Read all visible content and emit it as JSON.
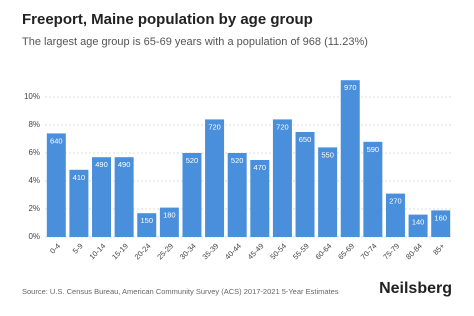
{
  "chart_data": {
    "type": "bar",
    "title": "Freeport, Maine population by age group",
    "subtitle": "The largest age group is 65-69 years with a population of 968 (11.23%)",
    "categories": [
      "0-4",
      "5-9",
      "10-14",
      "15-19",
      "20-24",
      "25-29",
      "30-34",
      "35-39",
      "40-44",
      "45-49",
      "50-54",
      "55-59",
      "60-64",
      "65-69",
      "70-74",
      "75-79",
      "80-84",
      "85+"
    ],
    "values": [
      7.4,
      4.8,
      5.7,
      5.7,
      1.7,
      2.1,
      6.0,
      8.4,
      6.0,
      5.5,
      8.4,
      7.5,
      6.4,
      11.2,
      6.8,
      3.1,
      1.6,
      1.9
    ],
    "populations": [
      "640",
      "410",
      "490",
      "490",
      "150",
      "180",
      "520",
      "720",
      "520",
      "470",
      "720",
      "650",
      "550",
      "970",
      "590",
      "270",
      "140",
      "160"
    ],
    "color": "#4a8fdc",
    "ylim": [
      0,
      12
    ],
    "yticks": [
      {
        "value": 0,
        "label": "0%"
      },
      {
        "value": 2,
        "label": "2%"
      },
      {
        "value": 4,
        "label": "4%"
      },
      {
        "value": 6,
        "label": "6%"
      },
      {
        "value": 8,
        "label": "8%"
      },
      {
        "value": 10,
        "label": "10%"
      }
    ],
    "grid": true,
    "source": "Source: U.S. Census Bureau, American Community Survey (ACS) 2017-2021 5-Year Estimates",
    "brand": "Neilsberg"
  }
}
